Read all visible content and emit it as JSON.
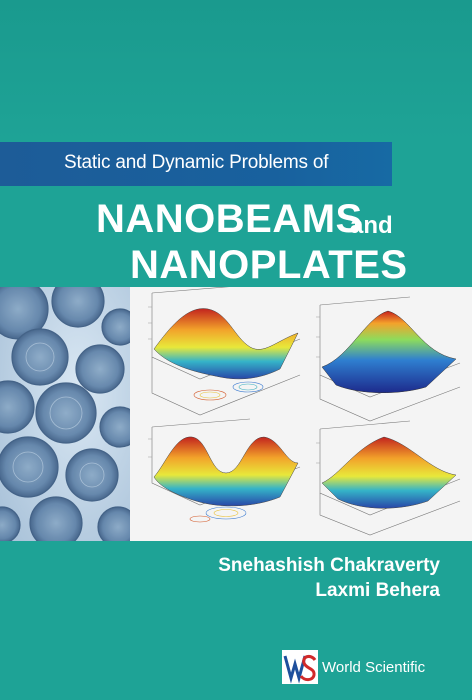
{
  "cover": {
    "subtitle": "Static and Dynamic Problems of",
    "title_line1": "NANOBEAMS",
    "title_and": "and",
    "title_line2": "NANOPLATES",
    "authors": [
      "Snehashish Chakraverty",
      "Laxmi Behera"
    ],
    "publisher": "World Scientific",
    "colors": {
      "background": "#1ea396",
      "subtitle_band": "#1d5c98",
      "text": "#ffffff"
    }
  }
}
